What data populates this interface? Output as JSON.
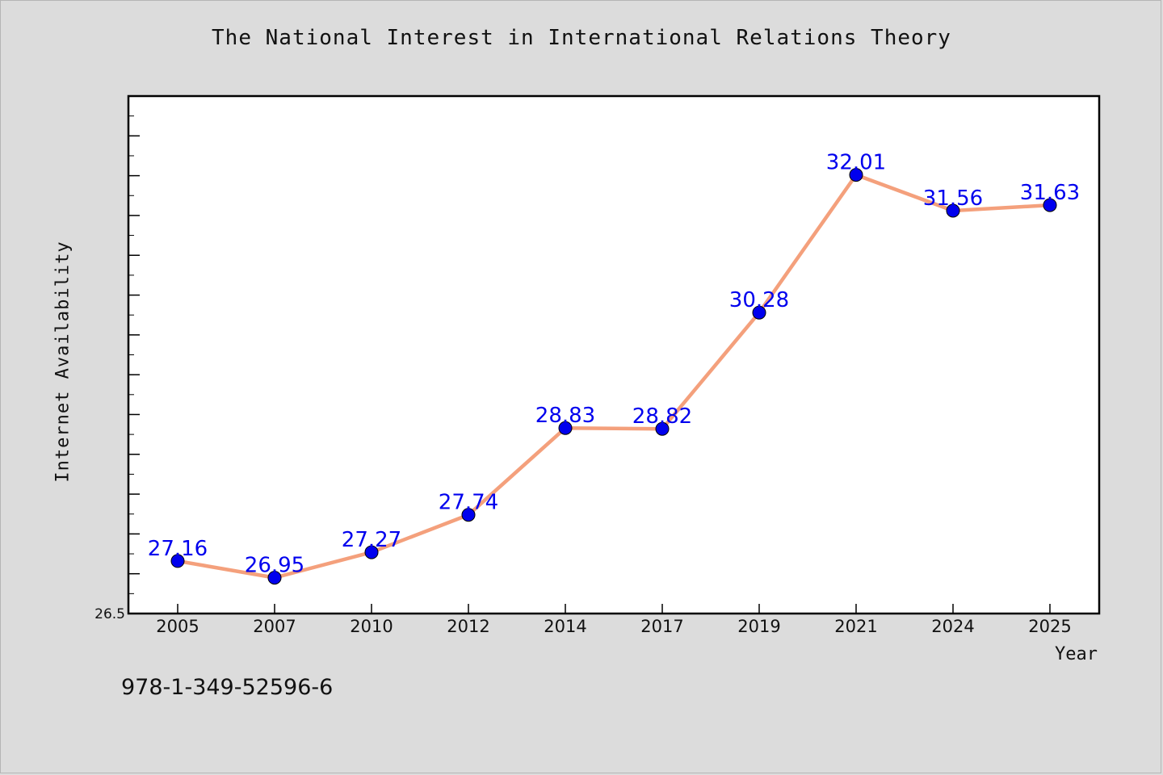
{
  "chart_data": {
    "type": "line",
    "title": "The National Interest in International Relations Theory",
    "xlabel": "Year",
    "ylabel": "Internet Availability",
    "categories": [
      "2005",
      "2007",
      "2010",
      "2012",
      "2014",
      "2017",
      "2019",
      "2021",
      "2024",
      "2025"
    ],
    "series": [
      {
        "values": [
          27.16,
          26.95,
          27.27,
          27.74,
          28.83,
          28.82,
          30.28,
          32.01,
          31.56,
          31.63
        ],
        "labels": [
          "27.16",
          "26.95",
          "27.27",
          "27.74",
          "28.83",
          "28.82",
          "30.28",
          "32.01",
          "31.56",
          "31.63"
        ],
        "line_color": "#f4a07c",
        "marker_color": "#0000ee"
      }
    ],
    "ylim": [
      26.5,
      33.0
    ],
    "y_tick_labels": [
      "26.5"
    ],
    "grid": false,
    "legend": "none"
  },
  "footer": {
    "isbn": "978-1-349-52596-6"
  }
}
